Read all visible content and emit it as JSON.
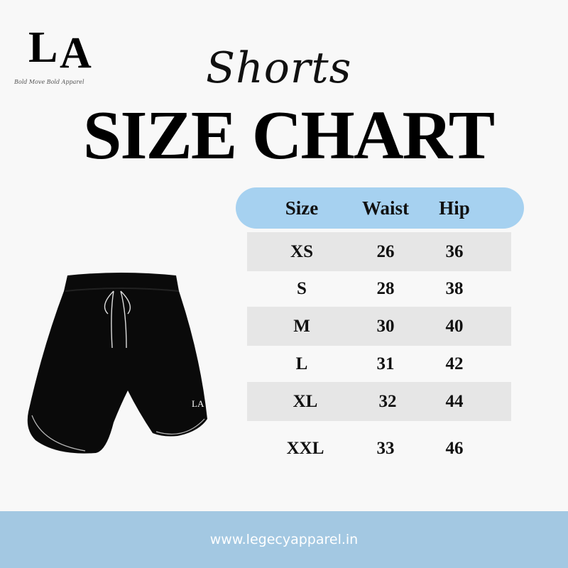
{
  "logo": {
    "monogram_left": "L",
    "monogram_right": "A",
    "tagline": "Bold Move Bold Apparel"
  },
  "header": {
    "script_title": "Shorts",
    "title": "SIZE CHART"
  },
  "table": {
    "columns": [
      "Size",
      "Waist",
      "Hip"
    ],
    "rows": [
      [
        "XS",
        "26",
        "36"
      ],
      [
        "S",
        "28",
        "38"
      ],
      [
        "M",
        "30",
        "40"
      ],
      [
        "L",
        "31",
        "42"
      ],
      [
        "XL",
        "32",
        "44"
      ],
      [
        "XXL",
        "33",
        "46"
      ]
    ]
  },
  "product": {
    "logo_text": "LA"
  },
  "footer": {
    "url": "www.legecyapparel.in"
  },
  "colors": {
    "header_blue": "#a6d1f0",
    "footer_blue": "#a3c8e2",
    "row_gray": "#e6e6e6",
    "background": "#f8f8f8"
  }
}
